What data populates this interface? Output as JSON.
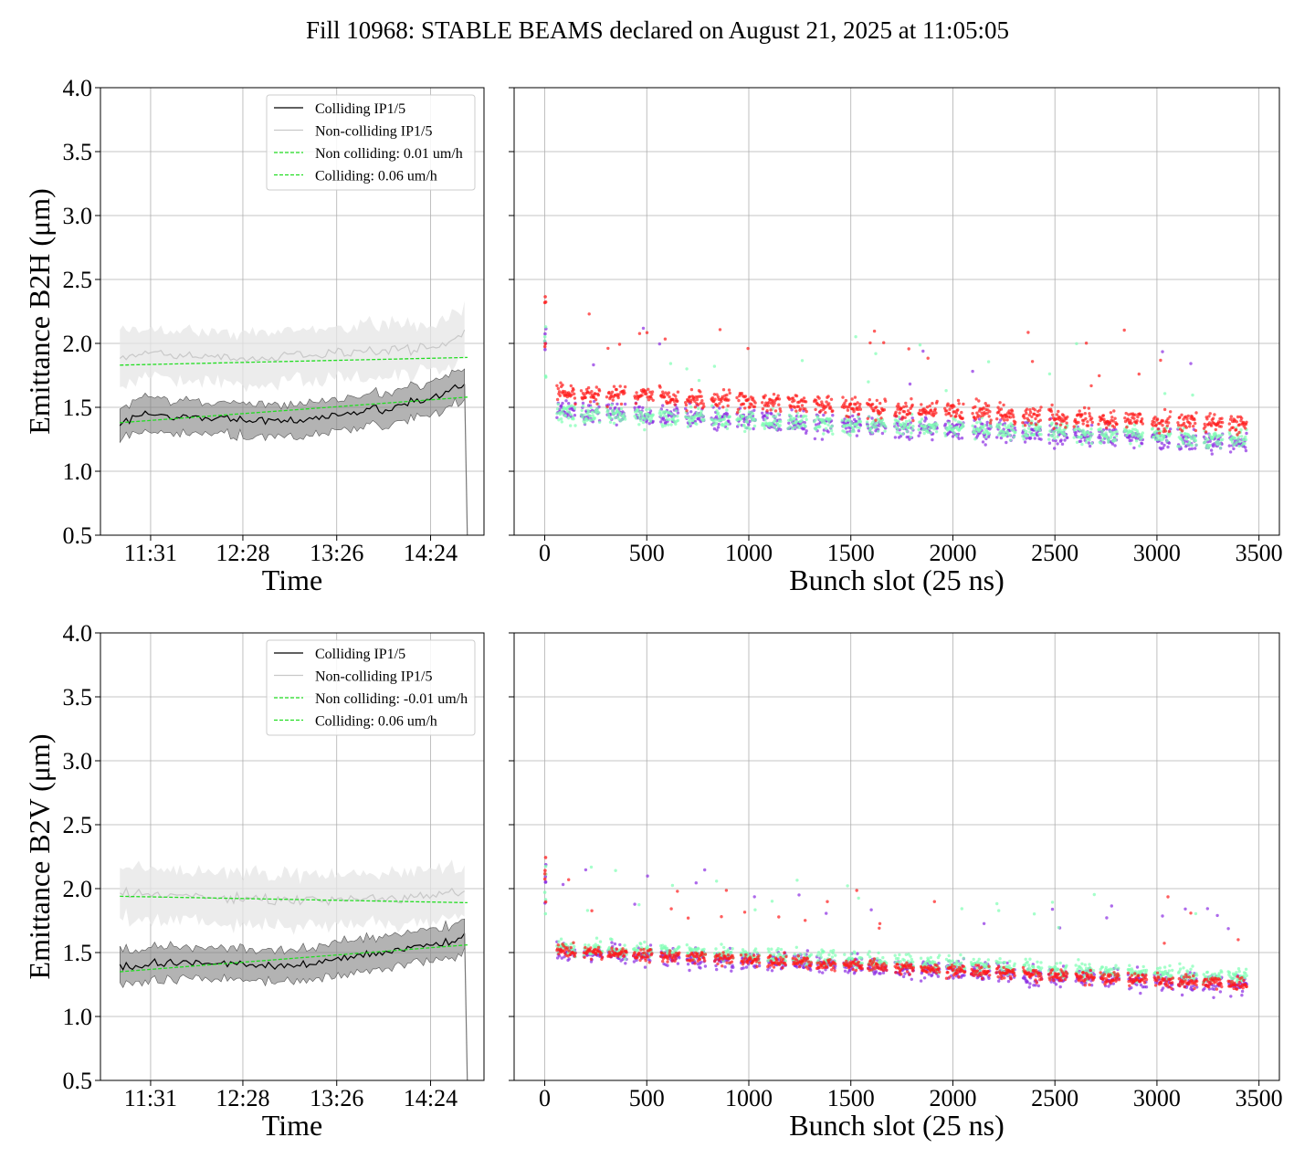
{
  "title": "Fill 10968: STABLE BEAMS declared on August 21, 2025 at 11:05:05",
  "colors": {
    "colliding": "#000000",
    "colliding_band": "#808080",
    "noncolliding": "#c8c8c8",
    "noncolliding_band": "#e6e6e6",
    "fit": "#22dd22",
    "scatter_purple": "#8a2be2",
    "scatter_mint": "#7fffb4",
    "scatter_red": "#ff1a1a",
    "grid": "#b0b0b0"
  },
  "chart_data": [
    {
      "id": "b2h-time",
      "type": "line",
      "xlabel": "Time",
      "ylabel": "Emittance B2H (μm)",
      "xticks": [
        "11:31",
        "12:28",
        "13:26",
        "14:24"
      ],
      "ylim": [
        0.5,
        4.0
      ],
      "yticks": [
        "0.5",
        "1.0",
        "1.5",
        "2.0",
        "2.5",
        "3.0",
        "3.5",
        "4.0"
      ],
      "grid": true,
      "legend_position": "top-right",
      "legend": [
        "Colliding IP1/5",
        "Non-colliding IP1/5",
        "Non colliding: 0.01 um/h",
        "Colliding: 0.06 um/h"
      ],
      "x_hours_since_1100": [
        0.2,
        0.5,
        1.0,
        1.5,
        2.0,
        2.5,
        3.0,
        3.5,
        3.75
      ],
      "colliding_mean": [
        1.38,
        1.45,
        1.42,
        1.4,
        1.38,
        1.45,
        1.5,
        1.6,
        1.7
      ],
      "colliding_band": 0.12,
      "noncolliding_mean": [
        1.88,
        1.92,
        1.9,
        1.88,
        1.9,
        1.92,
        1.95,
        1.98,
        2.1
      ],
      "noncolliding_band": 0.18,
      "fit_noncolliding": [
        1.83,
        1.89
      ],
      "fit_colliding": [
        1.38,
        1.58
      ]
    },
    {
      "id": "b2h-bunch",
      "type": "scatter",
      "xlabel": "Bunch slot (25 ns)",
      "xlim": [
        -150,
        3600
      ],
      "xticks": [
        0,
        500,
        1000,
        1500,
        2000,
        2500,
        3000,
        3500
      ],
      "ylim": [
        0.5,
        4.0
      ],
      "grid": true,
      "series": [
        {
          "color_key": "scatter_purple",
          "start": 1.48,
          "end": 1.22,
          "spread": 0.14
        },
        {
          "color_key": "scatter_mint",
          "start": 1.46,
          "end": 1.25,
          "spread": 0.12
        },
        {
          "color_key": "scatter_red",
          "start": 1.62,
          "end": 1.36,
          "spread": 0.12
        }
      ]
    },
    {
      "id": "b2v-time",
      "type": "line",
      "xlabel": "Time",
      "ylabel": "Emittance B2V (μm)",
      "xticks": [
        "11:31",
        "12:28",
        "13:26",
        "14:24"
      ],
      "ylim": [
        0.5,
        4.0
      ],
      "yticks": [
        "0.5",
        "1.0",
        "1.5",
        "2.0",
        "2.5",
        "3.0",
        "3.5",
        "4.0"
      ],
      "grid": true,
      "legend_position": "top-right",
      "legend": [
        "Colliding IP1/5",
        "Non-colliding IP1/5",
        "Non colliding: -0.01 um/h",
        "Colliding: 0.06 um/h"
      ],
      "x_hours_since_1100": [
        0.2,
        0.5,
        1.0,
        1.5,
        2.0,
        2.5,
        3.0,
        3.5,
        3.75
      ],
      "colliding_mean": [
        1.38,
        1.4,
        1.42,
        1.4,
        1.4,
        1.45,
        1.52,
        1.58,
        1.62
      ],
      "colliding_band": 0.12,
      "noncolliding_mean": [
        1.95,
        1.96,
        1.93,
        1.92,
        1.9,
        1.92,
        1.93,
        1.95,
        1.97
      ],
      "noncolliding_band": 0.18,
      "fit_noncolliding": [
        1.94,
        1.89
      ],
      "fit_colliding": [
        1.35,
        1.56
      ]
    },
    {
      "id": "b2v-bunch",
      "type": "scatter",
      "xlabel": "Bunch slot (25 ns)",
      "xlim": [
        -150,
        3600
      ],
      "xticks": [
        0,
        500,
        1000,
        1500,
        2000,
        2500,
        3000,
        3500
      ],
      "ylim": [
        0.5,
        4.0
      ],
      "grid": true,
      "series": [
        {
          "color_key": "scatter_purple",
          "start": 1.52,
          "end": 1.24,
          "spread": 0.12
        },
        {
          "color_key": "scatter_mint",
          "start": 1.55,
          "end": 1.3,
          "spread": 0.1
        },
        {
          "color_key": "scatter_red",
          "start": 1.52,
          "end": 1.25,
          "spread": 0.08
        }
      ]
    }
  ]
}
